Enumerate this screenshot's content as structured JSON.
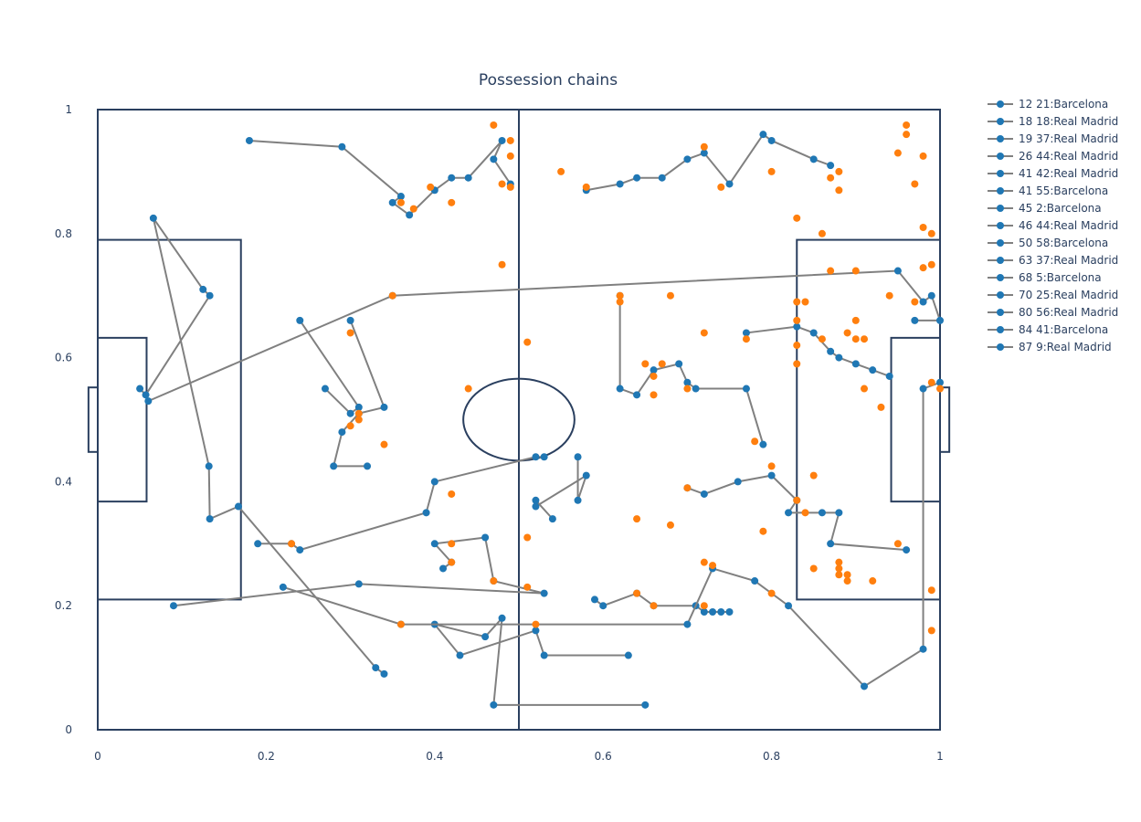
{
  "chart_data": {
    "type": "scatter",
    "title": "Possession chains",
    "xlabel": "",
    "ylabel": "",
    "xlim": [
      0,
      1
    ],
    "ylim": [
      0,
      1
    ],
    "x_ticks": [
      "0",
      "0.2",
      "0.4",
      "0.6",
      "0.8",
      "1"
    ],
    "y_ticks": [
      "0",
      "0.2",
      "0.4",
      "0.6",
      "0.8",
      "1"
    ],
    "grid": false,
    "legend_position": "top-right",
    "colors": {
      "line": "#808080",
      "marker": "#1f77b4",
      "event_marker": "#ff7f0e",
      "pitch": "#2a3f5f"
    },
    "pitch": {
      "center_x": 0.5,
      "center_circle": {
        "x": 0.5,
        "y": 0.5,
        "r": 0.066
      },
      "penalty_area_width": 0.17,
      "penalty_area_y": [
        0.21,
        0.79
      ],
      "six_yard_width": 0.058,
      "six_yard_y": [
        0.368,
        0.632
      ],
      "goal_depth": 0.011,
      "goal_y": [
        0.448,
        0.552
      ]
    },
    "series": [
      {
        "name": "12 21:Barcelona",
        "points": [
          [
            0.05,
            0.55
          ],
          [
            0.057,
            0.54
          ],
          [
            0.133,
            0.7
          ],
          [
            0.125,
            0.71
          ],
          [
            0.066,
            0.825
          ],
          [
            0.132,
            0.425
          ],
          [
            0.133,
            0.34
          ],
          [
            0.167,
            0.36
          ],
          [
            0.33,
            0.1
          ],
          [
            0.34,
            0.09
          ]
        ]
      },
      {
        "name": "18 18:Real Madrid",
        "points": [
          [
            0.18,
            0.95
          ],
          [
            0.29,
            0.94
          ],
          [
            0.36,
            0.86
          ],
          [
            0.35,
            0.85
          ],
          [
            0.37,
            0.83
          ],
          [
            0.4,
            0.87
          ],
          [
            0.42,
            0.89
          ],
          [
            0.44,
            0.89
          ],
          [
            0.48,
            0.95
          ],
          [
            0.47,
            0.92
          ],
          [
            0.49,
            0.88
          ]
        ]
      },
      {
        "name": "19 37:Real Madrid",
        "points": [
          [
            0.06,
            0.53
          ],
          [
            0.35,
            0.7
          ],
          [
            0.95,
            0.74
          ],
          [
            0.98,
            0.69
          ],
          [
            0.99,
            0.7
          ],
          [
            1.0,
            0.66
          ],
          [
            0.97,
            0.66
          ]
        ]
      },
      {
        "name": "26 44:Real Madrid",
        "points": [
          [
            0.09,
            0.2
          ],
          [
            0.31,
            0.235
          ],
          [
            0.53,
            0.22
          ],
          [
            0.47,
            0.24
          ],
          [
            0.46,
            0.31
          ],
          [
            0.4,
            0.3
          ],
          [
            0.42,
            0.27
          ],
          [
            0.41,
            0.26
          ]
        ]
      },
      {
        "name": "41 42:Real Madrid",
        "points": [
          [
            0.24,
            0.66
          ],
          [
            0.31,
            0.52
          ],
          [
            0.3,
            0.51
          ],
          [
            0.27,
            0.55
          ]
        ]
      },
      {
        "name": "41 55:Barcelona",
        "points": [
          [
            0.19,
            0.3
          ],
          [
            0.23,
            0.3
          ],
          [
            0.24,
            0.29
          ],
          [
            0.39,
            0.35
          ],
          [
            0.4,
            0.4
          ],
          [
            0.52,
            0.44
          ],
          [
            0.53,
            0.44
          ]
        ]
      },
      {
        "name": "45 2:Barcelona",
        "points": [
          [
            0.32,
            0.425
          ],
          [
            0.28,
            0.425
          ],
          [
            0.29,
            0.48
          ],
          [
            0.31,
            0.51
          ],
          [
            0.34,
            0.52
          ],
          [
            0.3,
            0.66
          ]
        ]
      },
      {
        "name": "46 44:Real Madrid",
        "points": [
          [
            0.57,
            0.44
          ],
          [
            0.57,
            0.37
          ],
          [
            0.58,
            0.41
          ],
          [
            0.52,
            0.36
          ],
          [
            0.52,
            0.37
          ],
          [
            0.54,
            0.34
          ]
        ]
      },
      {
        "name": "50 58:Barcelona",
        "points": [
          [
            0.62,
            0.7
          ],
          [
            0.62,
            0.55
          ],
          [
            0.64,
            0.54
          ],
          [
            0.66,
            0.58
          ],
          [
            0.69,
            0.59
          ],
          [
            0.7,
            0.56
          ],
          [
            0.71,
            0.55
          ],
          [
            0.77,
            0.55
          ],
          [
            0.79,
            0.46
          ]
        ]
      },
      {
        "name": "63 37:Real Madrid",
        "points": [
          [
            0.7,
            0.39
          ],
          [
            0.72,
            0.38
          ],
          [
            0.76,
            0.4
          ],
          [
            0.8,
            0.41
          ],
          [
            0.83,
            0.37
          ],
          [
            0.82,
            0.35
          ],
          [
            0.86,
            0.35
          ],
          [
            0.88,
            0.35
          ],
          [
            0.87,
            0.3
          ],
          [
            0.96,
            0.29
          ]
        ]
      },
      {
        "name": "68 5:Barcelona",
        "points": [
          [
            0.59,
            0.21
          ],
          [
            0.6,
            0.2
          ],
          [
            0.64,
            0.22
          ],
          [
            0.66,
            0.2
          ],
          [
            0.71,
            0.2
          ],
          [
            0.72,
            0.19
          ],
          [
            0.73,
            0.19
          ],
          [
            0.74,
            0.19
          ],
          [
            0.75,
            0.19
          ]
        ]
      },
      {
        "name": "70 25:Real Madrid",
        "points": [
          [
            0.77,
            0.64
          ],
          [
            0.83,
            0.65
          ],
          [
            0.85,
            0.64
          ],
          [
            0.87,
            0.61
          ],
          [
            0.88,
            0.6
          ],
          [
            0.9,
            0.59
          ],
          [
            0.92,
            0.58
          ],
          [
            0.94,
            0.57
          ]
        ]
      },
      {
        "name": "80 56:Real Madrid",
        "points": [
          [
            0.58,
            0.87
          ],
          [
            0.62,
            0.88
          ],
          [
            0.64,
            0.89
          ],
          [
            0.67,
            0.89
          ],
          [
            0.7,
            0.92
          ],
          [
            0.72,
            0.93
          ],
          [
            0.75,
            0.88
          ],
          [
            0.79,
            0.96
          ],
          [
            0.8,
            0.95
          ],
          [
            0.85,
            0.92
          ],
          [
            0.87,
            0.91
          ]
        ]
      },
      {
        "name": "84 41:Barcelona",
        "points": [
          [
            0.65,
            0.04
          ],
          [
            0.47,
            0.04
          ],
          [
            0.48,
            0.18
          ],
          [
            0.46,
            0.15
          ],
          [
            0.4,
            0.17
          ],
          [
            0.43,
            0.12
          ],
          [
            0.52,
            0.16
          ],
          [
            0.53,
            0.12
          ],
          [
            0.63,
            0.12
          ]
        ]
      },
      {
        "name": "87 9:Real Madrid",
        "points": [
          [
            0.22,
            0.23
          ],
          [
            0.36,
            0.17
          ],
          [
            0.7,
            0.17
          ],
          [
            0.73,
            0.26
          ],
          [
            0.78,
            0.24
          ],
          [
            0.82,
            0.2
          ],
          [
            0.91,
            0.07
          ],
          [
            0.98,
            0.13
          ],
          [
            0.98,
            0.55
          ],
          [
            1.0,
            0.56
          ]
        ]
      }
    ],
    "event_points": [
      [
        0.47,
        0.975
      ],
      [
        0.49,
        0.95
      ],
      [
        0.49,
        0.925
      ],
      [
        0.48,
        0.88
      ],
      [
        0.49,
        0.875
      ],
      [
        0.395,
        0.875
      ],
      [
        0.36,
        0.85
      ],
      [
        0.375,
        0.84
      ],
      [
        0.42,
        0.85
      ],
      [
        0.35,
        0.7
      ],
      [
        0.48,
        0.75
      ],
      [
        0.3,
        0.64
      ],
      [
        0.31,
        0.51
      ],
      [
        0.31,
        0.5
      ],
      [
        0.3,
        0.49
      ],
      [
        0.34,
        0.46
      ],
      [
        0.23,
        0.3
      ],
      [
        0.42,
        0.38
      ],
      [
        0.42,
        0.3
      ],
      [
        0.42,
        0.27
      ],
      [
        0.47,
        0.24
      ],
      [
        0.36,
        0.17
      ],
      [
        0.44,
        0.55
      ],
      [
        0.51,
        0.625
      ],
      [
        0.51,
        0.31
      ],
      [
        0.51,
        0.23
      ],
      [
        0.52,
        0.17
      ],
      [
        0.55,
        0.9
      ],
      [
        0.58,
        0.875
      ],
      [
        0.62,
        0.7
      ],
      [
        0.62,
        0.69
      ],
      [
        0.64,
        0.34
      ],
      [
        0.64,
        0.22
      ],
      [
        0.65,
        0.59
      ],
      [
        0.67,
        0.59
      ],
      [
        0.66,
        0.57
      ],
      [
        0.66,
        0.54
      ],
      [
        0.68,
        0.7
      ],
      [
        0.68,
        0.33
      ],
      [
        0.66,
        0.2
      ],
      [
        0.7,
        0.55
      ],
      [
        0.7,
        0.39
      ],
      [
        0.72,
        0.94
      ],
      [
        0.72,
        0.64
      ],
      [
        0.72,
        0.27
      ],
      [
        0.72,
        0.2
      ],
      [
        0.73,
        0.265
      ],
      [
        0.74,
        0.875
      ],
      [
        0.77,
        0.63
      ],
      [
        0.78,
        0.465
      ],
      [
        0.79,
        0.32
      ],
      [
        0.8,
        0.22
      ],
      [
        0.8,
        0.425
      ],
      [
        0.8,
        0.9
      ],
      [
        0.83,
        0.825
      ],
      [
        0.83,
        0.69
      ],
      [
        0.84,
        0.69
      ],
      [
        0.83,
        0.66
      ],
      [
        0.83,
        0.62
      ],
      [
        0.83,
        0.59
      ],
      [
        0.83,
        0.37
      ],
      [
        0.84,
        0.35
      ],
      [
        0.85,
        0.41
      ],
      [
        0.85,
        0.26
      ],
      [
        0.86,
        0.8
      ],
      [
        0.86,
        0.63
      ],
      [
        0.87,
        0.74
      ],
      [
        0.87,
        0.89
      ],
      [
        0.88,
        0.9
      ],
      [
        0.88,
        0.87
      ],
      [
        0.89,
        0.64
      ],
      [
        0.9,
        0.74
      ],
      [
        0.9,
        0.66
      ],
      [
        0.9,
        0.63
      ],
      [
        0.88,
        0.27
      ],
      [
        0.88,
        0.26
      ],
      [
        0.88,
        0.25
      ],
      [
        0.89,
        0.25
      ],
      [
        0.89,
        0.24
      ],
      [
        0.91,
        0.55
      ],
      [
        0.92,
        0.24
      ],
      [
        0.91,
        0.63
      ],
      [
        0.93,
        0.52
      ],
      [
        0.95,
        0.93
      ],
      [
        0.96,
        0.975
      ],
      [
        0.96,
        0.96
      ],
      [
        0.97,
        0.88
      ],
      [
        0.98,
        0.925
      ],
      [
        0.98,
        0.81
      ],
      [
        0.99,
        0.8
      ],
      [
        0.99,
        0.75
      ],
      [
        0.95,
        0.3
      ],
      [
        0.97,
        0.69
      ],
      [
        0.99,
        0.56
      ],
      [
        0.99,
        0.225
      ],
      [
        0.99,
        0.16
      ],
      [
        1.0,
        0.55
      ],
      [
        0.98,
        0.745
      ],
      [
        0.94,
        0.7
      ]
    ]
  }
}
